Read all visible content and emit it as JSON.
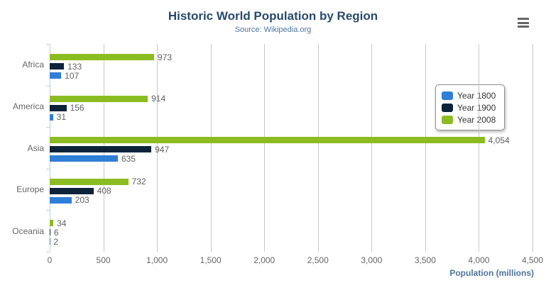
{
  "chart_data": {
    "type": "bar",
    "orientation": "horizontal",
    "title": "Historic World Population by Region",
    "subtitle": "Source: Wikipedia.org",
    "categories": [
      "Africa",
      "America",
      "Asia",
      "Europe",
      "Oceania"
    ],
    "series": [
      {
        "name": "Year 1800",
        "color": "#2f7ed8",
        "values": [
          107,
          31,
          635,
          203,
          2
        ]
      },
      {
        "name": "Year 1900",
        "color": "#0d233a",
        "values": [
          133,
          156,
          947,
          408,
          6
        ]
      },
      {
        "name": "Year 2008",
        "color": "#8bbc21",
        "values": [
          973,
          914,
          4054,
          732,
          34
        ]
      }
    ],
    "xlabel": "Population (millions)",
    "axis_range": {
      "min": 0,
      "max": 4500,
      "tick_interval": 500
    },
    "tick_labels": [
      "0",
      "500",
      "1,000",
      "1,500",
      "2,000",
      "2,500",
      "3,000",
      "3,500",
      "4,000",
      "4,500"
    ],
    "grid": true,
    "legend_position": "right",
    "bar_display_order": "last-series-topmost-in-group"
  },
  "toolbar": {
    "menu_icon": "hamburger-menu-icon"
  },
  "colors": {
    "title": "#274b6d",
    "subtitle": "#4d759e",
    "axis_title": "#4d759e",
    "axis_labels": "#666666",
    "data_labels": "#606060",
    "gridline": "#c8c8c8",
    "axis_line": "#c0d0e0",
    "legend_border": "#909090",
    "series_year_1800": "#2f7ed8",
    "series_year_1900": "#0d233a",
    "series_year_2008": "#8bbc21"
  }
}
